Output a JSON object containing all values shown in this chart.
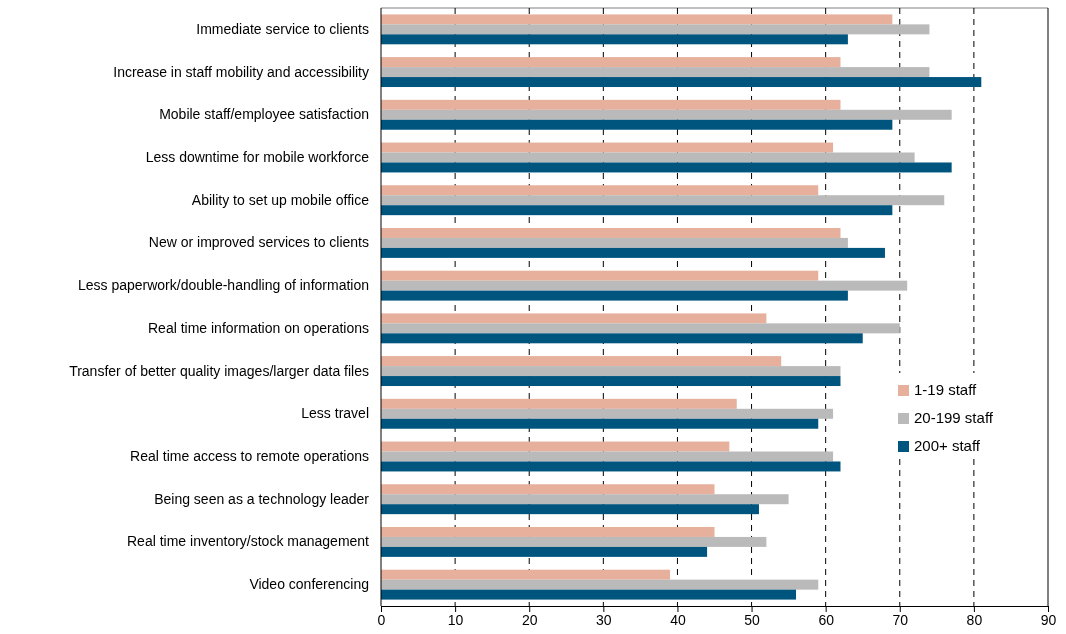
{
  "chart_data": {
    "type": "bar",
    "orientation": "horizontal",
    "categories": [
      "Immediate service to clients",
      "Increase in staff mobility and accessibility",
      "Mobile staff/employee satisfaction",
      "Less downtime for mobile workforce",
      "Ability to set up mobile office",
      "New or improved services to clients",
      "Less paperwork/double-handling of information",
      "Real time information on operations",
      "Transfer of better quality images/larger data files",
      "Less travel",
      "Real time access to remote operations",
      "Being seen as a technology leader",
      "Real time inventory/stock management",
      "Video conferencing"
    ],
    "series": [
      {
        "name": "1-19 staff",
        "color": "#e6b09c",
        "values": [
          69,
          62,
          62,
          61,
          59,
          62,
          59,
          52,
          54,
          48,
          47,
          45,
          45,
          39
        ]
      },
      {
        "name": "20-199 staff",
        "color": "#bababa",
        "values": [
          74,
          74,
          77,
          72,
          76,
          63,
          71,
          70,
          62,
          61,
          61,
          55,
          52,
          59
        ]
      },
      {
        "name": "200+ staff",
        "color": "#00557f",
        "values": [
          63,
          81,
          69,
          77,
          69,
          68,
          63,
          65,
          62,
          59,
          62,
          51,
          44,
          56
        ]
      }
    ],
    "xlim": [
      0,
      90
    ],
    "xticks": [
      0,
      10,
      20,
      30,
      40,
      50,
      60,
      70,
      80,
      90
    ],
    "grid": "x",
    "legend": "right"
  }
}
